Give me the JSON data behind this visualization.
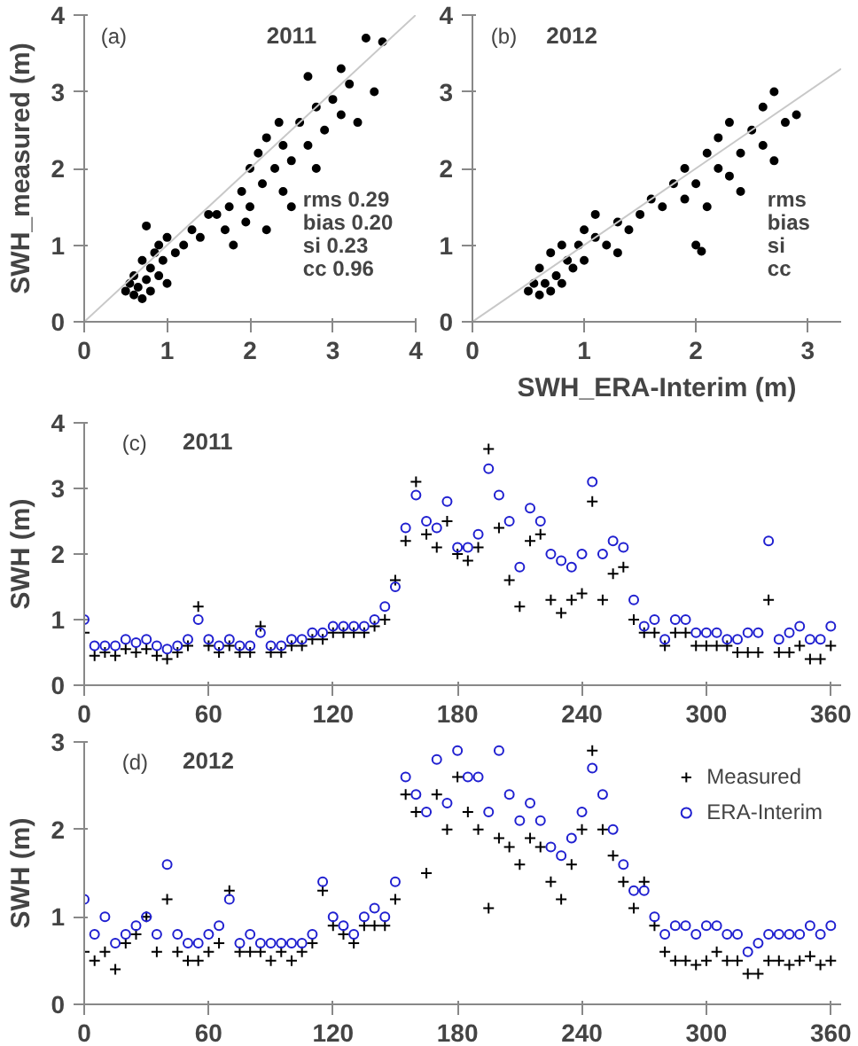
{
  "chart_data": [
    {
      "type": "scatter",
      "ylabel": "SWH_measured (m)",
      "xlim": [
        0,
        4
      ],
      "ylim": [
        0,
        4
      ],
      "xticks": [
        0,
        1,
        2,
        3,
        4
      ],
      "yticks": [
        0,
        1,
        2,
        3,
        4
      ],
      "grid": false,
      "annotations": [
        "(a)",
        "2011",
        "rms   0.29",
        "bias  0.20",
        "si      0.23",
        "cc     0.96"
      ],
      "series": [
        {
          "marker": "circle",
          "color": "#000000",
          "x": [
            0.5,
            0.55,
            0.6,
            0.6,
            0.65,
            0.7,
            0.7,
            0.75,
            0.8,
            0.8,
            0.85,
            0.9,
            0.9,
            0.95,
            1.0,
            1.0,
            1.1,
            1.2,
            1.3,
            1.4,
            1.6,
            1.7,
            1.75,
            1.8,
            1.9,
            1.95,
            2.0,
            2.0,
            2.1,
            2.15,
            2.2,
            2.2,
            2.3,
            2.35,
            2.4,
            2.4,
            2.5,
            2.5,
            2.6,
            2.7,
            2.8,
            2.8,
            2.9,
            3.0,
            3.1,
            3.1,
            3.2,
            3.3,
            3.4,
            3.5,
            3.6,
            0.75,
            1.5,
            2.7
          ],
          "values": [
            0.4,
            0.5,
            0.35,
            0.6,
            0.45,
            0.3,
            0.8,
            0.55,
            0.4,
            0.7,
            0.9,
            0.6,
            1.0,
            0.8,
            0.5,
            1.1,
            0.9,
            1.0,
            1.2,
            1.1,
            1.4,
            1.2,
            1.5,
            1.0,
            1.7,
            1.3,
            2.0,
            1.5,
            2.2,
            1.8,
            1.2,
            2.4,
            2.0,
            2.6,
            1.7,
            2.3,
            2.1,
            1.5,
            2.6,
            2.3,
            2.8,
            2.0,
            2.5,
            2.9,
            2.7,
            3.3,
            3.1,
            2.6,
            3.7,
            3.0,
            3.65,
            1.25,
            1.4,
            3.2
          ]
        },
        {
          "type": "line",
          "color": "#c8c8c8",
          "x": [
            0,
            4
          ],
          "values": [
            0,
            4
          ]
        }
      ]
    },
    {
      "type": "scatter",
      "xlabel": "SWH_ERA-Interim (m)",
      "xlim": [
        0,
        3.3
      ],
      "ylim": [
        0,
        4
      ],
      "xticks": [
        0,
        1,
        2,
        3
      ],
      "yticks": [
        0,
        1,
        2,
        3,
        4
      ],
      "grid": false,
      "annotations": [
        "(b)",
        "2012",
        "rms",
        "bias",
        "si",
        "cc"
      ],
      "series": [
        {
          "marker": "circle",
          "color": "#000000",
          "x": [
            0.5,
            0.55,
            0.6,
            0.6,
            0.65,
            0.7,
            0.7,
            0.75,
            0.8,
            0.8,
            0.85,
            0.9,
            0.95,
            1.0,
            1.0,
            1.1,
            1.2,
            1.3,
            1.4,
            1.5,
            1.6,
            1.7,
            1.8,
            1.9,
            1.9,
            2.0,
            2.0,
            2.1,
            2.1,
            2.2,
            2.2,
            2.3,
            2.3,
            2.4,
            2.4,
            2.5,
            2.6,
            2.6,
            2.7,
            2.7,
            2.8,
            2.9,
            1.1,
            1.3,
            2.05
          ],
          "values": [
            0.4,
            0.5,
            0.35,
            0.7,
            0.5,
            0.4,
            0.9,
            0.6,
            0.5,
            1.0,
            0.8,
            0.7,
            1.0,
            0.8,
            1.2,
            1.1,
            1.0,
            1.3,
            1.2,
            1.4,
            1.6,
            1.5,
            1.8,
            1.6,
            2.0,
            1.8,
            1.0,
            2.2,
            1.5,
            2.0,
            2.4,
            1.9,
            2.6,
            2.2,
            1.7,
            2.5,
            2.3,
            2.8,
            2.1,
            3.0,
            2.6,
            2.7,
            1.4,
            0.9,
            0.92
          ]
        },
        {
          "type": "line",
          "color": "#c8c8c8",
          "x": [
            0,
            3.3
          ],
          "values": [
            0,
            3.3
          ]
        }
      ]
    },
    {
      "type": "scatter",
      "ylabel": "SWH (m)",
      "xlim": [
        0,
        365
      ],
      "ylim": [
        0,
        4
      ],
      "xticks": [
        0,
        60,
        120,
        180,
        240,
        300,
        360
      ],
      "yticks": [
        0,
        1,
        2,
        3,
        4
      ],
      "grid": false,
      "annotations": [
        "(c)",
        "2011"
      ],
      "x": [
        0,
        5,
        10,
        15,
        20,
        25,
        30,
        35,
        40,
        45,
        50,
        55,
        60,
        65,
        70,
        75,
        80,
        85,
        90,
        95,
        100,
        105,
        110,
        115,
        120,
        125,
        130,
        135,
        140,
        145,
        150,
        155,
        160,
        165,
        170,
        175,
        180,
        185,
        190,
        195,
        200,
        205,
        210,
        215,
        220,
        225,
        230,
        235,
        240,
        245,
        250,
        255,
        260,
        265,
        270,
        275,
        280,
        285,
        290,
        295,
        300,
        305,
        310,
        315,
        320,
        325,
        330,
        335,
        340,
        345,
        350,
        355,
        360
      ],
      "series": [
        {
          "marker": "cross",
          "color": "#000000",
          "values": [
            0.8,
            0.45,
            0.5,
            0.45,
            0.55,
            0.5,
            0.55,
            0.45,
            0.4,
            0.5,
            0.6,
            1.2,
            0.6,
            0.5,
            0.6,
            0.5,
            0.5,
            0.9,
            0.5,
            0.5,
            0.6,
            0.6,
            0.7,
            0.7,
            0.8,
            0.8,
            0.8,
            0.8,
            0.9,
            1.0,
            1.6,
            2.2,
            3.1,
            2.3,
            2.1,
            2.5,
            2.0,
            1.9,
            2.1,
            3.6,
            2.4,
            1.6,
            1.2,
            2.2,
            2.3,
            1.3,
            1.1,
            1.3,
            1.4,
            2.8,
            1.3,
            1.7,
            1.8,
            1.0,
            0.8,
            0.8,
            0.6,
            0.8,
            0.8,
            0.6,
            0.6,
            0.6,
            0.6,
            0.5,
            0.5,
            0.5,
            1.3,
            0.5,
            0.5,
            0.6,
            0.4,
            0.4,
            0.6
          ]
        },
        {
          "marker": "circle",
          "color": "#1f1fd0",
          "values": [
            1.0,
            0.6,
            0.6,
            0.6,
            0.7,
            0.65,
            0.7,
            0.6,
            0.55,
            0.6,
            0.7,
            1.0,
            0.7,
            0.6,
            0.7,
            0.6,
            0.6,
            0.8,
            0.6,
            0.6,
            0.7,
            0.7,
            0.8,
            0.8,
            0.9,
            0.9,
            0.9,
            0.9,
            1.0,
            1.2,
            1.5,
            2.4,
            2.9,
            2.5,
            2.4,
            2.8,
            2.1,
            2.1,
            2.3,
            3.3,
            2.9,
            2.5,
            1.8,
            2.7,
            2.5,
            2.0,
            1.9,
            1.8,
            2.0,
            3.1,
            2.0,
            2.2,
            2.1,
            1.3,
            0.9,
            1.0,
            0.7,
            1.0,
            1.0,
            0.8,
            0.8,
            0.8,
            0.7,
            0.7,
            0.8,
            0.8,
            2.2,
            0.7,
            0.8,
            0.9,
            0.7,
            0.7,
            0.9
          ]
        }
      ]
    },
    {
      "type": "scatter",
      "ylabel": "SWH (m)",
      "xlim": [
        0,
        365
      ],
      "ylim": [
        0,
        3
      ],
      "xticks": [
        0,
        60,
        120,
        180,
        240,
        300,
        360
      ],
      "yticks": [
        0,
        1,
        2,
        3
      ],
      "grid": false,
      "legend": "top right",
      "annotations": [
        "(d)",
        "2012"
      ],
      "x": [
        0,
        5,
        10,
        15,
        20,
        25,
        30,
        35,
        40,
        45,
        50,
        55,
        60,
        65,
        70,
        75,
        80,
        85,
        90,
        95,
        100,
        105,
        110,
        115,
        120,
        125,
        130,
        135,
        140,
        145,
        150,
        155,
        160,
        165,
        170,
        175,
        180,
        185,
        190,
        195,
        200,
        205,
        210,
        215,
        220,
        225,
        230,
        235,
        240,
        245,
        250,
        255,
        260,
        265,
        270,
        275,
        280,
        285,
        290,
        295,
        300,
        305,
        310,
        315,
        320,
        325,
        330,
        335,
        340,
        345,
        350,
        355,
        360
      ],
      "series": [
        {
          "name": "Measured",
          "marker": "cross",
          "color": "#000000",
          "values": [
            0.6,
            0.5,
            0.6,
            0.4,
            0.7,
            0.8,
            1.0,
            0.6,
            1.2,
            0.6,
            0.5,
            0.5,
            0.6,
            0.7,
            1.3,
            0.6,
            0.6,
            0.6,
            0.5,
            0.6,
            0.5,
            0.6,
            0.7,
            1.3,
            0.9,
            0.8,
            0.7,
            0.9,
            0.9,
            0.9,
            1.2,
            2.4,
            2.2,
            1.5,
            2.4,
            2.0,
            2.6,
            2.2,
            2.0,
            1.1,
            1.9,
            1.8,
            1.6,
            1.9,
            1.8,
            1.4,
            1.2,
            1.6,
            2.0,
            2.9,
            2.0,
            1.7,
            1.4,
            1.1,
            1.4,
            0.9,
            0.6,
            0.5,
            0.5,
            0.45,
            0.5,
            0.6,
            0.5,
            0.5,
            0.35,
            0.35,
            0.5,
            0.5,
            0.45,
            0.5,
            0.55,
            0.45,
            0.5
          ]
        },
        {
          "name": "ERA-Interim",
          "marker": "circle",
          "color": "#1f1fd0",
          "values": [
            1.2,
            0.8,
            1.0,
            0.7,
            0.8,
            0.9,
            1.0,
            0.8,
            1.6,
            0.8,
            0.7,
            0.7,
            0.8,
            0.9,
            1.2,
            0.7,
            0.8,
            0.7,
            0.7,
            0.7,
            0.7,
            0.7,
            0.8,
            1.4,
            1.0,
            0.9,
            0.8,
            1.0,
            1.1,
            1.0,
            1.4,
            2.6,
            2.4,
            2.2,
            2.8,
            2.3,
            2.9,
            2.6,
            2.6,
            2.2,
            2.9,
            2.4,
            2.1,
            2.3,
            2.1,
            1.8,
            1.7,
            1.9,
            2.2,
            2.7,
            2.4,
            2.0,
            1.6,
            1.3,
            1.3,
            1.0,
            0.8,
            0.9,
            0.9,
            0.8,
            0.9,
            0.9,
            0.8,
            0.8,
            0.6,
            0.7,
            0.8,
            0.8,
            0.8,
            0.8,
            0.9,
            0.8,
            0.9
          ]
        }
      ]
    }
  ]
}
